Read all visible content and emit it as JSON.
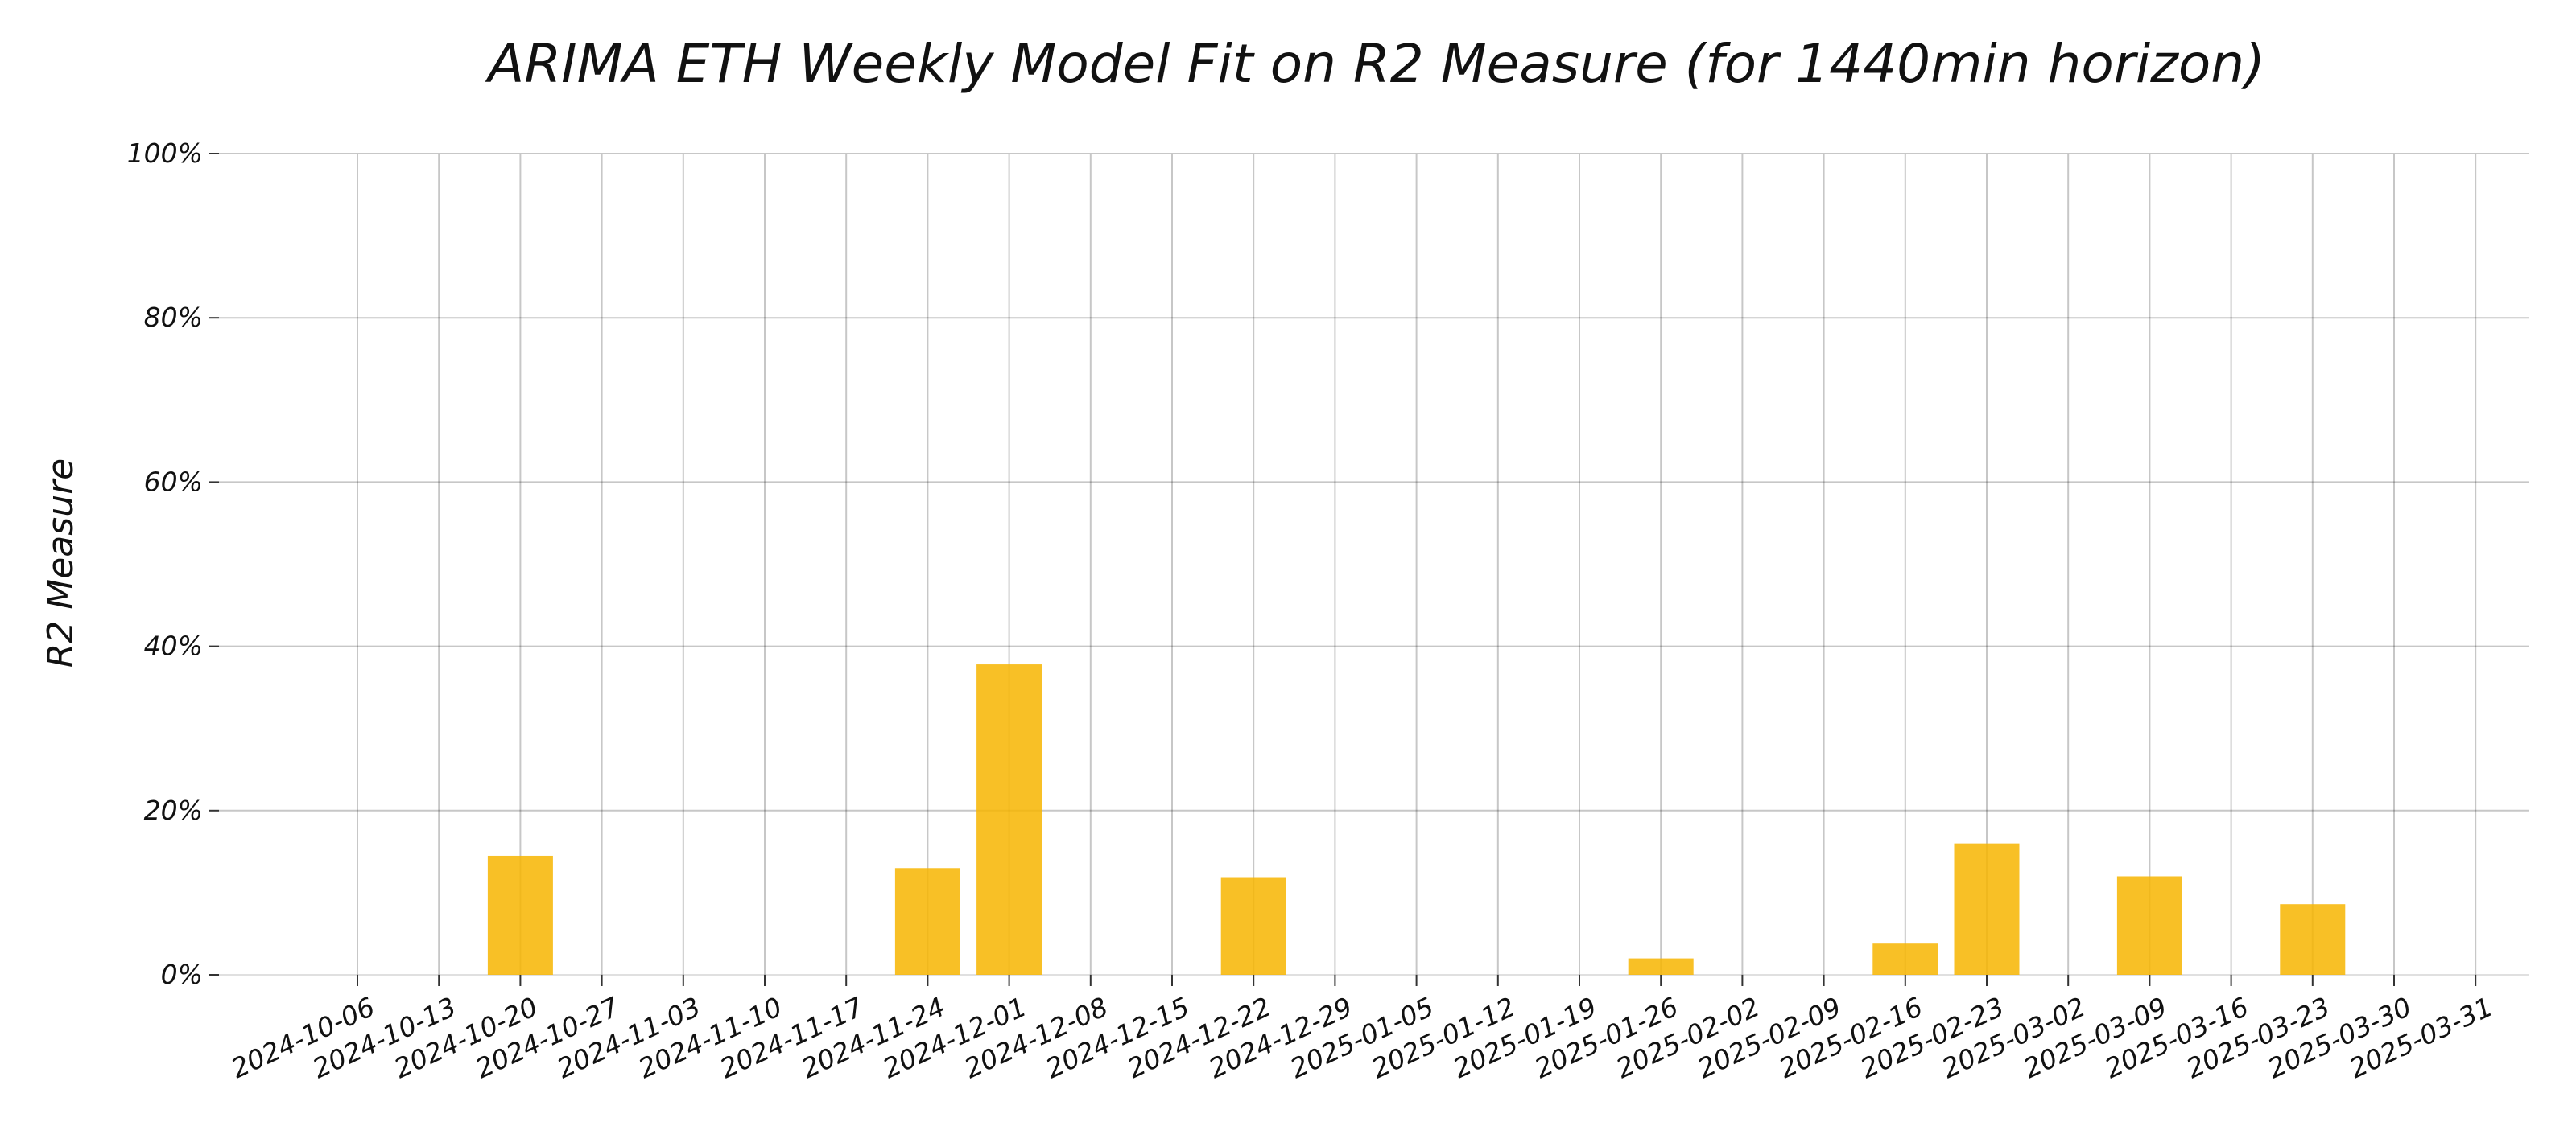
{
  "chart_data": {
    "type": "bar",
    "title": "ARIMA ETH Weekly Model Fit on R2 Measure (for 1440min horizon)",
    "xlabel": "",
    "ylabel": "R2 Measure",
    "ylim": [
      0,
      100
    ],
    "y_unit": "%",
    "yticks": [
      "0%",
      "20%",
      "40%",
      "60%",
      "80%",
      "100%"
    ],
    "grid": true,
    "bar_color": "#f7b500",
    "categories": [
      "2024-10-06",
      "2024-10-13",
      "2024-10-20",
      "2024-10-27",
      "2024-11-03",
      "2024-11-10",
      "2024-11-17",
      "2024-11-24",
      "2024-12-01",
      "2024-12-08",
      "2024-12-15",
      "2024-12-22",
      "2024-12-29",
      "2025-01-05",
      "2025-01-12",
      "2025-01-19",
      "2025-01-26",
      "2025-02-02",
      "2025-02-09",
      "2025-02-16",
      "2025-02-23",
      "2025-03-02",
      "2025-03-09",
      "2025-03-16",
      "2025-03-23",
      "2025-03-30",
      "2025-03-31"
    ],
    "bars": [
      {
        "week": "2024-10-20",
        "value": 14.5
      },
      {
        "week": "2024-11-24",
        "value": 13.0
      },
      {
        "week": "2024-12-01",
        "value": 37.8
      },
      {
        "week": "2024-12-22",
        "value": 11.8
      },
      {
        "week": "2025-01-26",
        "value": 2.0
      },
      {
        "week": "2025-02-16",
        "value": 3.8
      },
      {
        "week": "2025-02-23",
        "value": 16.0
      },
      {
        "week": "2025-03-09",
        "value": 12.0
      },
      {
        "week": "2025-03-23",
        "value": 8.6
      }
    ]
  }
}
